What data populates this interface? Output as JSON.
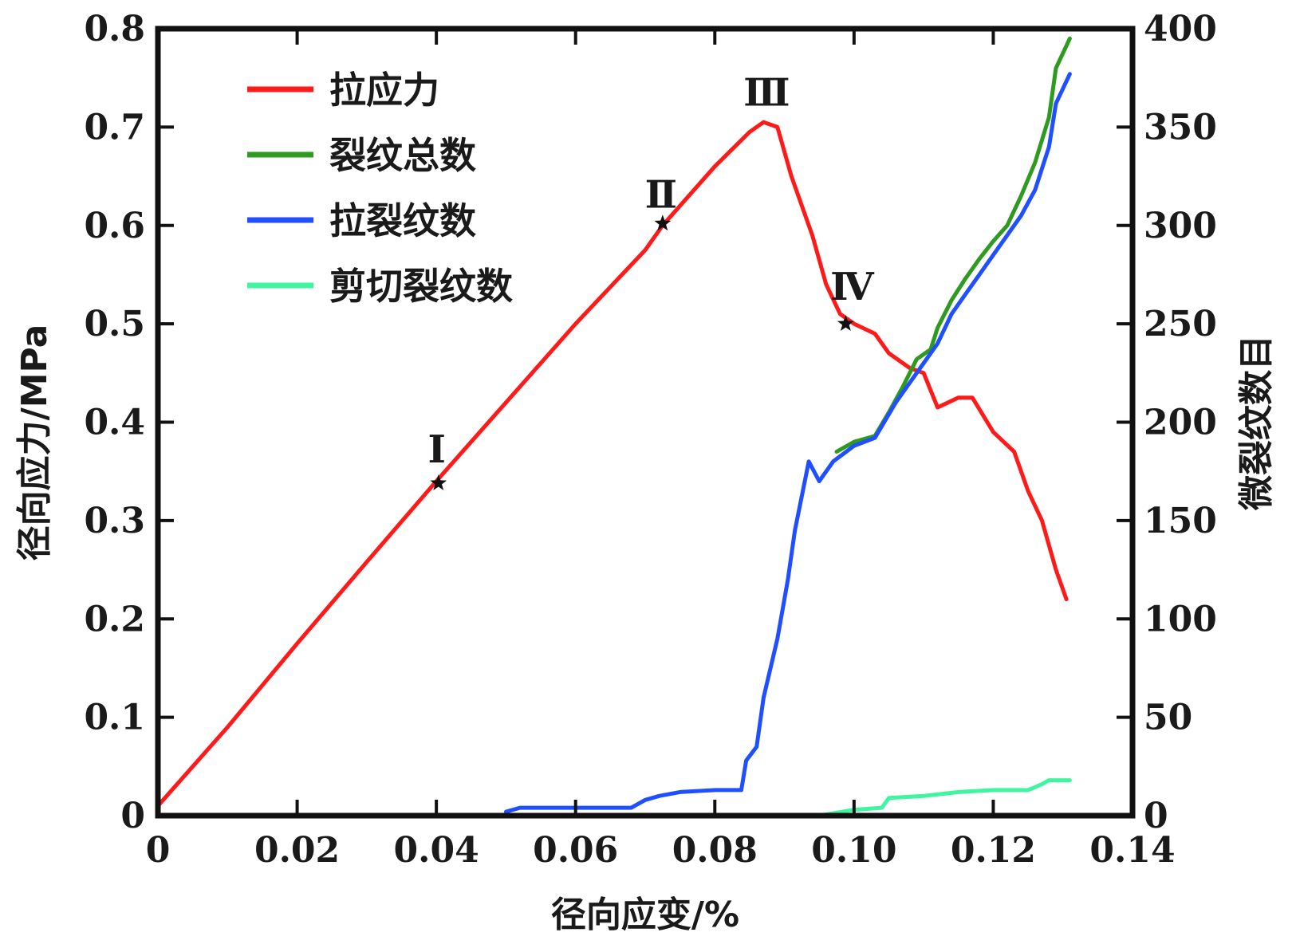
{
  "chart_data": {
    "type": "line",
    "xlabel": "径向应变/%",
    "ylabel_left": "径向应力/MPa",
    "ylabel_right": "微裂纹数目",
    "xlim": [
      0,
      0.14
    ],
    "ylim_left": [
      0,
      0.8
    ],
    "ylim_right": [
      0,
      400
    ],
    "x_ticks": [
      "0",
      "0.02",
      "0.04",
      "0.06",
      "0.08",
      "0.10",
      "0.12",
      "0.14"
    ],
    "y_left_ticks": [
      "0",
      "0.1",
      "0.2",
      "0.3",
      "0.4",
      "0.5",
      "0.6",
      "0.7",
      "0.8"
    ],
    "y_right_ticks": [
      "0",
      "50",
      "100",
      "150",
      "200",
      "250",
      "300",
      "350",
      "400"
    ],
    "grid": false,
    "legend_position": "top-left",
    "series": [
      {
        "name": "拉应力",
        "axis": "left",
        "color": "#ff1a1a",
        "points": [
          [
            0,
            0.01
          ],
          [
            0.01,
            0.09
          ],
          [
            0.02,
            0.175
          ],
          [
            0.03,
            0.258
          ],
          [
            0.04,
            0.34
          ],
          [
            0.05,
            0.42
          ],
          [
            0.06,
            0.5
          ],
          [
            0.07,
            0.575
          ],
          [
            0.0725,
            0.6
          ],
          [
            0.08,
            0.66
          ],
          [
            0.085,
            0.695
          ],
          [
            0.087,
            0.705
          ],
          [
            0.089,
            0.7
          ],
          [
            0.091,
            0.65
          ],
          [
            0.094,
            0.59
          ],
          [
            0.096,
            0.54
          ],
          [
            0.098,
            0.51
          ],
          [
            0.1,
            0.5
          ],
          [
            0.103,
            0.49
          ],
          [
            0.105,
            0.47
          ],
          [
            0.108,
            0.455
          ],
          [
            0.11,
            0.45
          ],
          [
            0.112,
            0.415
          ],
          [
            0.115,
            0.425
          ],
          [
            0.117,
            0.425
          ],
          [
            0.12,
            0.39
          ],
          [
            0.123,
            0.37
          ],
          [
            0.125,
            0.33
          ],
          [
            0.127,
            0.3
          ],
          [
            0.129,
            0.25
          ],
          [
            0.1305,
            0.22
          ]
        ]
      },
      {
        "name": "裂纹总数",
        "axis": "right",
        "color": "#2e9a1f",
        "points": [
          [
            0.0975,
            185
          ],
          [
            0.1,
            190
          ],
          [
            0.103,
            193
          ],
          [
            0.105,
            205
          ],
          [
            0.107,
            218
          ],
          [
            0.109,
            232
          ],
          [
            0.111,
            237
          ],
          [
            0.112,
            248
          ],
          [
            0.114,
            262
          ],
          [
            0.116,
            273
          ],
          [
            0.118,
            283
          ],
          [
            0.12,
            292
          ],
          [
            0.122,
            300
          ],
          [
            0.124,
            315
          ],
          [
            0.126,
            332
          ],
          [
            0.128,
            355
          ],
          [
            0.129,
            380
          ],
          [
            0.131,
            395
          ]
        ]
      },
      {
        "name": "拉裂纹数",
        "axis": "right",
        "color": "#1f4fff",
        "points": [
          [
            0.05,
            2
          ],
          [
            0.052,
            4
          ],
          [
            0.055,
            4
          ],
          [
            0.068,
            4
          ],
          [
            0.07,
            8
          ],
          [
            0.072,
            10
          ],
          [
            0.075,
            12
          ],
          [
            0.08,
            13
          ],
          [
            0.0838,
            13
          ],
          [
            0.0845,
            28
          ],
          [
            0.086,
            35
          ],
          [
            0.087,
            60
          ],
          [
            0.089,
            90
          ],
          [
            0.0905,
            120
          ],
          [
            0.0915,
            145
          ],
          [
            0.0935,
            180
          ],
          [
            0.095,
            170
          ],
          [
            0.097,
            180
          ],
          [
            0.1,
            188
          ],
          [
            0.103,
            192
          ],
          [
            0.106,
            210
          ],
          [
            0.108,
            220
          ],
          [
            0.11,
            230
          ],
          [
            0.112,
            240
          ],
          [
            0.114,
            255
          ],
          [
            0.116,
            265
          ],
          [
            0.118,
            275
          ],
          [
            0.12,
            285
          ],
          [
            0.122,
            295
          ],
          [
            0.124,
            305
          ],
          [
            0.126,
            318
          ],
          [
            0.128,
            340
          ],
          [
            0.129,
            362
          ],
          [
            0.131,
            377
          ]
        ]
      },
      {
        "name": "剪切裂纹数",
        "axis": "right",
        "color": "#3ff5a0",
        "points": [
          [
            0.095,
            0
          ],
          [
            0.1,
            3
          ],
          [
            0.104,
            4
          ],
          [
            0.105,
            9
          ],
          [
            0.11,
            10
          ],
          [
            0.115,
            12
          ],
          [
            0.12,
            13
          ],
          [
            0.125,
            13
          ],
          [
            0.127,
            16
          ],
          [
            0.128,
            18
          ],
          [
            0.131,
            18
          ]
        ]
      }
    ],
    "annotations": [
      {
        "label": "Ⅰ",
        "x": 0.0403,
        "y": 0.338
      },
      {
        "label": "Ⅱ",
        "x": 0.0725,
        "y": 0.602
      },
      {
        "label": "Ⅲ",
        "x": 0.087,
        "y": 0.707
      },
      {
        "label": "Ⅳ",
        "x": 0.0988,
        "y": 0.5
      }
    ]
  }
}
